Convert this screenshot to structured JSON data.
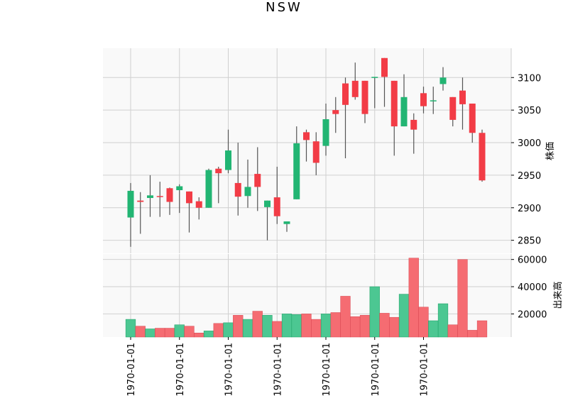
{
  "chart_data": {
    "type": "candlestick",
    "title": "NSW",
    "ylabel_price": "株価",
    "ylabel_volume": "出来高",
    "price_ylim": [
      2830,
      3145
    ],
    "price_ticks": [
      2850,
      2900,
      2950,
      3000,
      3050,
      3100
    ],
    "volume_ylim": [
      3000,
      64000
    ],
    "volume_ticks": [
      20000,
      40000,
      60000
    ],
    "x_tick_labels": [
      "1970-01-01",
      "1970-01-01",
      "1970-01-01",
      "1970-01-01",
      "1970-01-01",
      "1970-01-01",
      "1970-01-01"
    ],
    "x_tick_indices": [
      0,
      5,
      10,
      15,
      20,
      25,
      30
    ],
    "up_color": "#22b573",
    "down_color": "#f23c46",
    "up_volume_color": "#4cc792",
    "down_volume_color": "#f56c72",
    "grid": true,
    "candles": [
      {
        "open": 2885,
        "high": 2938,
        "low": 2840,
        "close": 2926,
        "volume": 16000
      },
      {
        "open": 2911,
        "high": 2924,
        "low": 2860,
        "close": 2909,
        "volume": 11000
      },
      {
        "open": 2915,
        "high": 2950,
        "low": 2886,
        "close": 2919,
        "volume": 9000
      },
      {
        "open": 2918,
        "high": 2940,
        "low": 2886,
        "close": 2917,
        "volume": 9500
      },
      {
        "open": 2930,
        "high": 2931,
        "low": 2889,
        "close": 2909,
        "volume": 9500
      },
      {
        "open": 2927,
        "high": 2936,
        "low": 2892,
        "close": 2933,
        "volume": 12000
      },
      {
        "open": 2925,
        "high": 2925,
        "low": 2862,
        "close": 2907,
        "volume": 11000
      },
      {
        "open": 2910,
        "high": 2916,
        "low": 2882,
        "close": 2900,
        "volume": 6000
      },
      {
        "open": 2900,
        "high": 2960,
        "low": 2900,
        "close": 2958,
        "volume": 7500
      },
      {
        "open": 2960,
        "high": 2963,
        "low": 2907,
        "close": 2953,
        "volume": 13000
      },
      {
        "open": 2958,
        "high": 3020,
        "low": 2953,
        "close": 2988,
        "volume": 13500
      },
      {
        "open": 2938,
        "high": 3000,
        "low": 2888,
        "close": 2917,
        "volume": 19000
      },
      {
        "open": 2918,
        "high": 2974,
        "low": 2900,
        "close": 2932,
        "volume": 16000
      },
      {
        "open": 2952,
        "high": 2993,
        "low": 2895,
        "close": 2932,
        "volume": 22000
      },
      {
        "open": 2901,
        "high": 2911,
        "low": 2850,
        "close": 2911,
        "volume": 19000
      },
      {
        "open": 2916,
        "high": 2963,
        "low": 2875,
        "close": 2887,
        "volume": 14500
      },
      {
        "open": 2875,
        "high": 2878,
        "low": 2863,
        "close": 2879,
        "volume": 20000
      },
      {
        "open": 2913,
        "high": 3025,
        "low": 2913,
        "close": 2999,
        "volume": 19500
      },
      {
        "open": 3016,
        "high": 3020,
        "low": 2971,
        "close": 3004,
        "volume": 20000
      },
      {
        "open": 3002,
        "high": 3016,
        "low": 2950,
        "close": 2969,
        "volume": 16000
      },
      {
        "open": 2995,
        "high": 3060,
        "low": 2980,
        "close": 3036,
        "volume": 20000
      },
      {
        "open": 3050,
        "high": 3070,
        "low": 3015,
        "close": 3044,
        "volume": 21000
      },
      {
        "open": 3091,
        "high": 3100,
        "low": 2976,
        "close": 3058,
        "volume": 33000
      },
      {
        "open": 3095,
        "high": 3123,
        "low": 3066,
        "close": 3070,
        "volume": 18000
      },
      {
        "open": 3095,
        "high": 3095,
        "low": 3030,
        "close": 3044,
        "volume": 19000
      },
      {
        "open": 3101,
        "high": 3101,
        "low": 3053,
        "close": 3101,
        "volume": 40000
      },
      {
        "open": 3130,
        "high": 3130,
        "low": 3055,
        "close": 3101,
        "volume": 20500
      },
      {
        "open": 3095,
        "high": 3095,
        "low": 2980,
        "close": 3025,
        "volume": 17500
      },
      {
        "open": 3025,
        "high": 3105,
        "low": 3025,
        "close": 3070,
        "volume": 34500
      },
      {
        "open": 3035,
        "high": 3045,
        "low": 2983,
        "close": 3020,
        "volume": 61000
      },
      {
        "open": 3076,
        "high": 3086,
        "low": 3045,
        "close": 3056,
        "volume": 25000
      },
      {
        "open": 3065,
        "high": 3086,
        "low": 3044,
        "close": 3065,
        "volume": 15000
      },
      {
        "open": 3090,
        "high": 3116,
        "low": 3080,
        "close": 3100,
        "volume": 27500
      },
      {
        "open": 3070,
        "high": 3070,
        "low": 3025,
        "close": 3035,
        "volume": 12000
      },
      {
        "open": 3080,
        "high": 3100,
        "low": 3020,
        "close": 3059,
        "volume": 60000
      },
      {
        "open": 3060,
        "high": 3060,
        "low": 3000,
        "close": 3015,
        "volume": 8000
      },
      {
        "open": 3015,
        "high": 3020,
        "low": 2940,
        "close": 2942,
        "volume": 15000
      }
    ]
  }
}
